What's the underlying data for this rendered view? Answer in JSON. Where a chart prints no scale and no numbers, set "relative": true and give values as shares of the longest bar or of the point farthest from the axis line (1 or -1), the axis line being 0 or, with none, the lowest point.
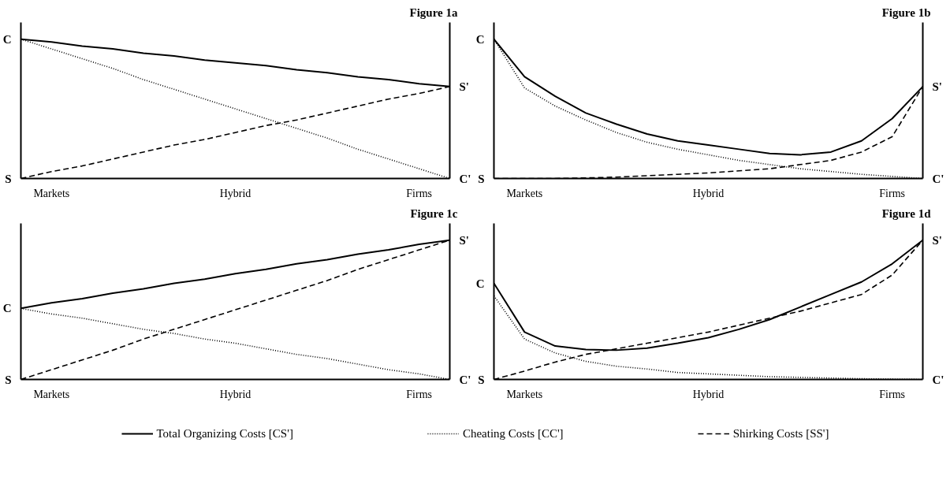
{
  "chart_data": [
    {
      "type": "line",
      "title": "Figure 1a",
      "relative": true,
      "legend": "bottom",
      "grid": false,
      "categories": [
        null,
        "Markets",
        null,
        null,
        null,
        null,
        null,
        "Hybrid",
        null,
        null,
        null,
        null,
        null,
        "Firms",
        null
      ],
      "series": [
        {
          "name": "Total Organizing Costs [CS']",
          "color": "#000000",
          "line_style": "solid",
          "values": [
            1,
            0.98,
            0.95,
            0.93,
            0.9,
            0.88,
            0.85,
            0.83,
            0.81,
            0.78,
            0.76,
            0.73,
            0.71,
            0.68,
            0.66
          ]
        },
        {
          "name": "Cheating Costs [CC']",
          "color": "#000000",
          "line_style": "dotted",
          "values": [
            1,
            0.93,
            0.86,
            0.79,
            0.71,
            0.64,
            0.57,
            0.5,
            0.43,
            0.36,
            0.29,
            0.21,
            0.14,
            0.07,
            0
          ]
        },
        {
          "name": "Shirking Costs [SS']",
          "color": "#000000",
          "line_style": "dashed",
          "values": [
            0,
            0.05,
            0.09,
            0.14,
            0.19,
            0.24,
            0.28,
            0.33,
            0.38,
            0.42,
            0.47,
            0.52,
            0.57,
            0.61,
            0.66
          ]
        }
      ],
      "annotations": [
        "C",
        "S",
        "S'",
        "C'"
      ]
    },
    {
      "type": "line",
      "title": "Figure 1b",
      "relative": true,
      "grid": false,
      "categories": [
        null,
        "Markets",
        null,
        null,
        null,
        null,
        null,
        "Hybrid",
        null,
        null,
        null,
        null,
        null,
        "Firms",
        null
      ],
      "series": [
        {
          "color": "#000000",
          "line_style": "solid",
          "values": [
            1,
            0.73,
            0.59,
            0.47,
            0.39,
            0.32,
            0.27,
            0.24,
            0.21,
            0.18,
            0.17,
            0.19,
            0.27,
            0.43,
            0.66
          ]
        },
        {
          "color": "#000000",
          "line_style": "dotted",
          "values": [
            1,
            0.65,
            0.52,
            0.42,
            0.33,
            0.26,
            0.21,
            0.17,
            0.13,
            0.1,
            0.07,
            0.05,
            0.03,
            0.015,
            0
          ]
        },
        {
          "color": "#000000",
          "line_style": "dashed",
          "values": [
            0,
            0,
            0,
            0.004,
            0.01,
            0.02,
            0.03,
            0.04,
            0.055,
            0.07,
            0.1,
            0.13,
            0.19,
            0.3,
            0.66
          ]
        }
      ],
      "annotations": [
        "C",
        "S",
        "S'",
        "C'"
      ]
    },
    {
      "type": "line",
      "title": "Figure 1c",
      "relative": true,
      "grid": false,
      "categories": [
        null,
        "Markets",
        null,
        null,
        null,
        null,
        null,
        "Hybrid",
        null,
        null,
        null,
        null,
        null,
        "Firms",
        null
      ],
      "series": [
        {
          "color": "#000000",
          "line_style": "solid",
          "values": [
            0.51,
            0.55,
            0.58,
            0.62,
            0.65,
            0.69,
            0.72,
            0.76,
            0.79,
            0.83,
            0.86,
            0.9,
            0.93,
            0.97,
            1
          ]
        },
        {
          "color": "#000000",
          "line_style": "dotted",
          "values": [
            0.51,
            0.47,
            0.44,
            0.4,
            0.36,
            0.33,
            0.29,
            0.26,
            0.22,
            0.18,
            0.15,
            0.11,
            0.07,
            0.04,
            0
          ]
        },
        {
          "color": "#000000",
          "line_style": "dashed",
          "values": [
            0,
            0.07,
            0.14,
            0.21,
            0.29,
            0.36,
            0.43,
            0.5,
            0.57,
            0.64,
            0.71,
            0.79,
            0.86,
            0.93,
            1
          ]
        }
      ],
      "annotations": [
        "C",
        "S",
        "S'",
        "C'"
      ]
    },
    {
      "type": "line",
      "title": "Figure 1d",
      "relative": true,
      "grid": false,
      "categories": [
        null,
        "Markets",
        null,
        null,
        null,
        null,
        null,
        "Hybrid",
        null,
        null,
        null,
        null,
        null,
        "Firms",
        null
      ],
      "series": [
        {
          "color": "#000000",
          "line_style": "solid",
          "values": [
            0.69,
            0.34,
            0.24,
            0.215,
            0.21,
            0.225,
            0.26,
            0.3,
            0.36,
            0.43,
            0.52,
            0.61,
            0.7,
            0.83,
            1
          ]
        },
        {
          "color": "#000000",
          "line_style": "dotted",
          "values": [
            0.6,
            0.29,
            0.19,
            0.13,
            0.095,
            0.075,
            0.05,
            0.04,
            0.03,
            0.02,
            0.015,
            0.01,
            0.005,
            0.002,
            0
          ]
        },
        {
          "color": "#000000",
          "line_style": "dashed",
          "values": [
            0,
            0.06,
            0.125,
            0.18,
            0.22,
            0.26,
            0.3,
            0.34,
            0.39,
            0.44,
            0.49,
            0.55,
            0.61,
            0.75,
            1
          ]
        }
      ],
      "annotations": [
        "C",
        "S",
        "S'",
        "C'"
      ]
    }
  ]
}
